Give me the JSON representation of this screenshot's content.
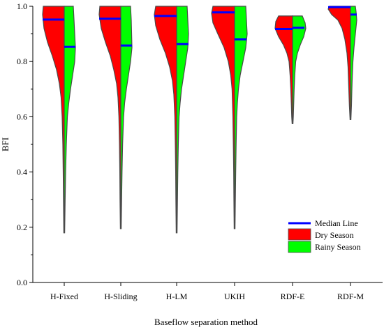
{
  "chart_data": {
    "type": "violin",
    "title": "",
    "xlabel": "Baseflow separation method",
    "ylabel": "BFI",
    "ylim": [
      0.0,
      1.0
    ],
    "yticks": [
      "0.0",
      "0.2",
      "0.4",
      "0.6",
      "0.8",
      "1.0"
    ],
    "categories": [
      "H-Fixed",
      "H-Sliding",
      "H-LM",
      "UKIH",
      "RDF-E",
      "RDF-M"
    ],
    "grid": false,
    "legend_position": "bottom-right",
    "legend": {
      "median": "Median Line",
      "dry": "Dry Season",
      "rainy": "Rainy Season"
    },
    "colors": {
      "dry": "#ff0000",
      "rainy": "#00ff00",
      "median": "#0000ff",
      "outline": "#4a4a4a"
    },
    "series": [
      {
        "name": "Dry Season",
        "medians": [
          0.952,
          0.955,
          0.965,
          0.978,
          0.918,
          0.997
        ],
        "min": [
          0.18,
          0.195,
          0.18,
          0.195,
          0.575,
          0.59
        ],
        "max": [
          1.0,
          1.0,
          1.0,
          1.0,
          0.965,
          1.0
        ]
      },
      {
        "name": "Rainy Season",
        "medians": [
          0.853,
          0.858,
          0.863,
          0.88,
          0.922,
          0.97
        ],
        "min": [
          0.18,
          0.195,
          0.18,
          0.195,
          0.575,
          0.59
        ],
        "max": [
          1.0,
          1.0,
          1.0,
          1.0,
          0.965,
          1.0
        ]
      }
    ]
  }
}
